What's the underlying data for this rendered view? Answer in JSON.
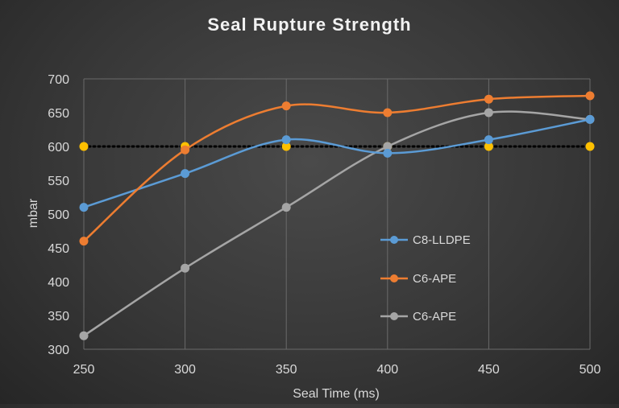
{
  "chart_data": {
    "type": "line",
    "title": "Seal Rupture Strength",
    "xlabel": "Seal Time (ms)",
    "ylabel": "mbar",
    "x": [
      250,
      300,
      350,
      400,
      450,
      500
    ],
    "xlim": [
      250,
      500
    ],
    "ylim": [
      300,
      700
    ],
    "x_ticks": [
      "250",
      "300",
      "350",
      "400",
      "450",
      "500"
    ],
    "y_ticks": [
      "300",
      "350",
      "400",
      "450",
      "500",
      "550",
      "600",
      "650",
      "700"
    ],
    "grid": "vertical",
    "legend_position": "right",
    "series": [
      {
        "name": "C8-LLDPE",
        "color": "#5b9bd5",
        "values": [
          510,
          560,
          610,
          590,
          610,
          640
        ],
        "style": "smooth"
      },
      {
        "name": "C6-APE",
        "color": "#ed7d31",
        "values": [
          460,
          595,
          660,
          650,
          670,
          675
        ],
        "style": "smooth"
      },
      {
        "name": "C6-APE",
        "color": "#a5a5a5",
        "values": [
          320,
          420,
          510,
          600,
          650,
          640
        ],
        "style": "smooth"
      },
      {
        "color": "#ffc000",
        "values": [
          600,
          600,
          600,
          600,
          600,
          600
        ],
        "style": "dotted-reference",
        "line_color": "#000000"
      }
    ]
  }
}
